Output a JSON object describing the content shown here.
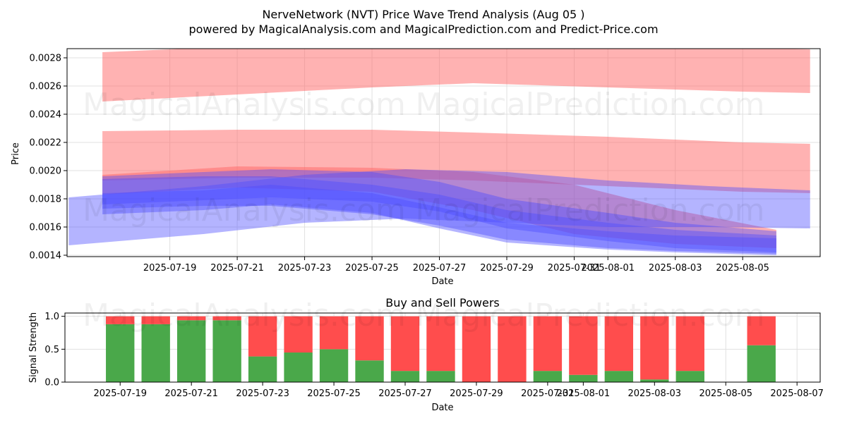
{
  "title": "NerveNetwork (NVT) Price Wave Trend Analysis (Aug 05 )",
  "subtitle": "powered by MagicalAnalysis.com and MagicalPrediction.com and Predict-Price.com",
  "watermarks": [
    "MagicalAnalysis.com",
    "MagicalPrediction.com"
  ],
  "colors": {
    "red_band": "#ff6666",
    "blue_band": "#4d4dff",
    "buy": "#4aa84a",
    "sell": "#ff4d4d",
    "grid": "#e0e0e0"
  },
  "chart_data": [
    {
      "type": "area",
      "title": "",
      "xlabel": "Date",
      "ylabel": "Price",
      "ylim": [
        0.00139,
        0.002865
      ],
      "xlim": [
        "2025-07-17",
        "2025-08-07"
      ],
      "x_ticks": [
        "2025-07-19",
        "2025-07-21",
        "2025-07-23",
        "2025-07-25",
        "2025-07-27",
        "2025-07-29",
        "2025-07-31",
        "2025-08-01",
        "2025-08-03",
        "2025-08-05"
      ],
      "y_ticks": [
        0.0014,
        0.0016,
        0.0018,
        0.002,
        0.0022,
        0.0024,
        0.0026,
        0.0028
      ],
      "grid": true,
      "red_bands": [
        {
          "x": [
            "2025-07-17",
            "2025-07-21",
            "2025-07-25",
            "2025-07-28",
            "2025-08-01",
            "2025-08-05",
            "2025-08-07"
          ],
          "upper": [
            0.00284,
            0.00288,
            0.0029,
            0.0029,
            0.00289,
            0.00287,
            0.00286
          ],
          "lower": [
            0.00249,
            0.00254,
            0.00259,
            0.00262,
            0.00259,
            0.00256,
            0.00255
          ]
        },
        {
          "x": [
            "2025-07-17",
            "2025-07-21",
            "2025-07-25",
            "2025-07-28",
            "2025-08-01",
            "2025-08-05",
            "2025-08-07"
          ],
          "upper": [
            0.00228,
            0.00229,
            0.00229,
            0.00227,
            0.00224,
            0.0022,
            0.00219
          ],
          "lower": [
            0.00193,
            0.00195,
            0.00195,
            0.00193,
            0.00189,
            0.00185,
            0.00184
          ]
        },
        {
          "x": [
            "2025-07-17",
            "2025-07-21",
            "2025-07-25",
            "2025-07-28",
            "2025-07-31",
            "2025-08-03",
            "2025-08-06"
          ],
          "upper": [
            0.00197,
            0.00203,
            0.00202,
            0.00199,
            0.0019,
            0.00172,
            0.00158
          ],
          "lower": [
            0.00183,
            0.00188,
            0.00185,
            0.00172,
            0.00155,
            0.00148,
            0.00145
          ]
        }
      ],
      "blue_bands": [
        {
          "x": [
            "2025-07-16",
            "2025-07-20",
            "2025-07-23",
            "2025-07-26",
            "2025-07-29",
            "2025-08-01",
            "2025-08-04",
            "2025-08-07"
          ],
          "upper": [
            0.00181,
            0.00189,
            0.00197,
            0.00201,
            0.00199,
            0.00193,
            0.00189,
            0.00186
          ],
          "lower": [
            0.00147,
            0.00155,
            0.00163,
            0.00166,
            0.00163,
            0.0016,
            0.0016,
            0.00159
          ]
        },
        {
          "x": [
            "2025-07-17",
            "2025-07-20",
            "2025-07-22",
            "2025-07-25",
            "2025-07-27",
            "2025-07-29",
            "2025-08-01",
            "2025-08-03",
            "2025-08-06"
          ],
          "upper": [
            0.00184,
            0.00186,
            0.0019,
            0.00184,
            0.00174,
            0.00163,
            0.00157,
            0.00154,
            0.00152
          ],
          "lower": [
            0.00169,
            0.00172,
            0.00176,
            0.0017,
            0.00159,
            0.00149,
            0.00144,
            0.00142,
            0.0014
          ]
        },
        {
          "x": [
            "2025-07-17",
            "2025-07-20",
            "2025-07-22",
            "2025-07-25",
            "2025-07-27",
            "2025-07-29",
            "2025-08-01",
            "2025-08-03",
            "2025-08-06"
          ],
          "upper": [
            0.00194,
            0.00196,
            0.00196,
            0.0019,
            0.00183,
            0.00172,
            0.00163,
            0.00158,
            0.00154
          ],
          "lower": [
            0.00173,
            0.00175,
            0.00175,
            0.00169,
            0.00161,
            0.00151,
            0.00145,
            0.00143,
            0.00141
          ]
        },
        {
          "x": [
            "2025-07-17",
            "2025-07-20",
            "2025-07-22",
            "2025-07-25",
            "2025-07-27",
            "2025-07-29",
            "2025-08-01",
            "2025-08-03",
            "2025-08-06"
          ],
          "upper": [
            0.00196,
            0.00199,
            0.00201,
            0.00199,
            0.00192,
            0.0018,
            0.0017,
            0.00163,
            0.00157
          ],
          "lower": [
            0.00176,
            0.00179,
            0.00181,
            0.00178,
            0.00171,
            0.00159,
            0.0015,
            0.00145,
            0.00142
          ]
        }
      ]
    },
    {
      "type": "bar",
      "title": "Buy and Sell Powers",
      "xlabel": "Date",
      "ylabel": "Signal Strength",
      "ylim": [
        0,
        1.05
      ],
      "y_ticks": [
        "0.0",
        "0.5",
        "1.0"
      ],
      "x_ticks": [
        "2025-07-19",
        "2025-07-21",
        "2025-07-23",
        "2025-07-25",
        "2025-07-27",
        "2025-07-29",
        "2025-07-31",
        "2025-08-01",
        "2025-08-03",
        "2025-08-05",
        "2025-08-07"
      ],
      "categories": [
        "2025-07-19",
        "2025-07-20",
        "2025-07-21",
        "2025-07-22",
        "2025-07-23",
        "2025-07-24",
        "2025-07-25",
        "2025-07-26",
        "2025-07-27",
        "2025-07-28",
        "2025-07-29",
        "2025-07-30",
        "2025-07-31",
        "2025-08-01",
        "2025-08-02",
        "2025-08-03",
        "2025-08-04",
        "2025-08-06"
      ],
      "series": [
        {
          "name": "Buy",
          "values": [
            0.88,
            0.88,
            0.94,
            0.94,
            0.39,
            0.45,
            0.5,
            0.33,
            0.17,
            0.17,
            0.0,
            0.0,
            0.17,
            0.11,
            0.17,
            0.04,
            0.17,
            0.56
          ]
        },
        {
          "name": "Sell",
          "values": [
            0.12,
            0.12,
            0.06,
            0.06,
            0.61,
            0.55,
            0.5,
            0.67,
            0.83,
            0.83,
            1.0,
            1.0,
            0.83,
            0.89,
            0.83,
            0.96,
            0.83,
            0.44
          ]
        }
      ],
      "grid": true
    }
  ]
}
